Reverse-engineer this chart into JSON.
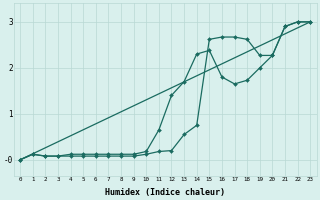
{
  "title": "",
  "xlabel": "Humidex (Indice chaleur)",
  "ylabel": "",
  "xlim": [
    -0.5,
    23.5
  ],
  "ylim": [
    -0.35,
    3.4
  ],
  "yticks": [
    0,
    1,
    2,
    3
  ],
  "ytick_labels": [
    "-0",
    "1",
    "2",
    "3"
  ],
  "xticks": [
    0,
    1,
    2,
    3,
    4,
    5,
    6,
    7,
    8,
    9,
    10,
    11,
    12,
    13,
    14,
    15,
    16,
    17,
    18,
    19,
    20,
    21,
    22,
    23
  ],
  "bg_color": "#d9f0ed",
  "grid_color": "#b8d8d4",
  "line_color": "#1a6b60",
  "line1_x": [
    0,
    1,
    2,
    3,
    4,
    5,
    6,
    7,
    8,
    9,
    10,
    11,
    12,
    13,
    14,
    15,
    16,
    17,
    18,
    19,
    20,
    21,
    22,
    23
  ],
  "line1_y": [
    0.0,
    0.12,
    0.08,
    0.08,
    0.08,
    0.08,
    0.08,
    0.08,
    0.08,
    0.08,
    0.12,
    0.18,
    0.2,
    0.55,
    0.75,
    2.62,
    2.67,
    2.67,
    2.62,
    2.27,
    2.27,
    2.9,
    3.0,
    3.0
  ],
  "line2_x": [
    0,
    1,
    2,
    3,
    4,
    5,
    6,
    7,
    8,
    9,
    10,
    11,
    12,
    13,
    14,
    15,
    16,
    17,
    18,
    19,
    20,
    21,
    22,
    23
  ],
  "line2_y": [
    0.0,
    0.12,
    0.08,
    0.08,
    0.12,
    0.12,
    0.12,
    0.12,
    0.12,
    0.12,
    0.18,
    0.65,
    1.4,
    1.7,
    2.3,
    2.38,
    1.8,
    1.65,
    1.73,
    2.0,
    2.27,
    2.9,
    3.0,
    3.0
  ],
  "line3_x": [
    0,
    23
  ],
  "line3_y": [
    0.0,
    3.0
  ],
  "marker": "D",
  "markersize": 2.0,
  "lw": 0.9
}
